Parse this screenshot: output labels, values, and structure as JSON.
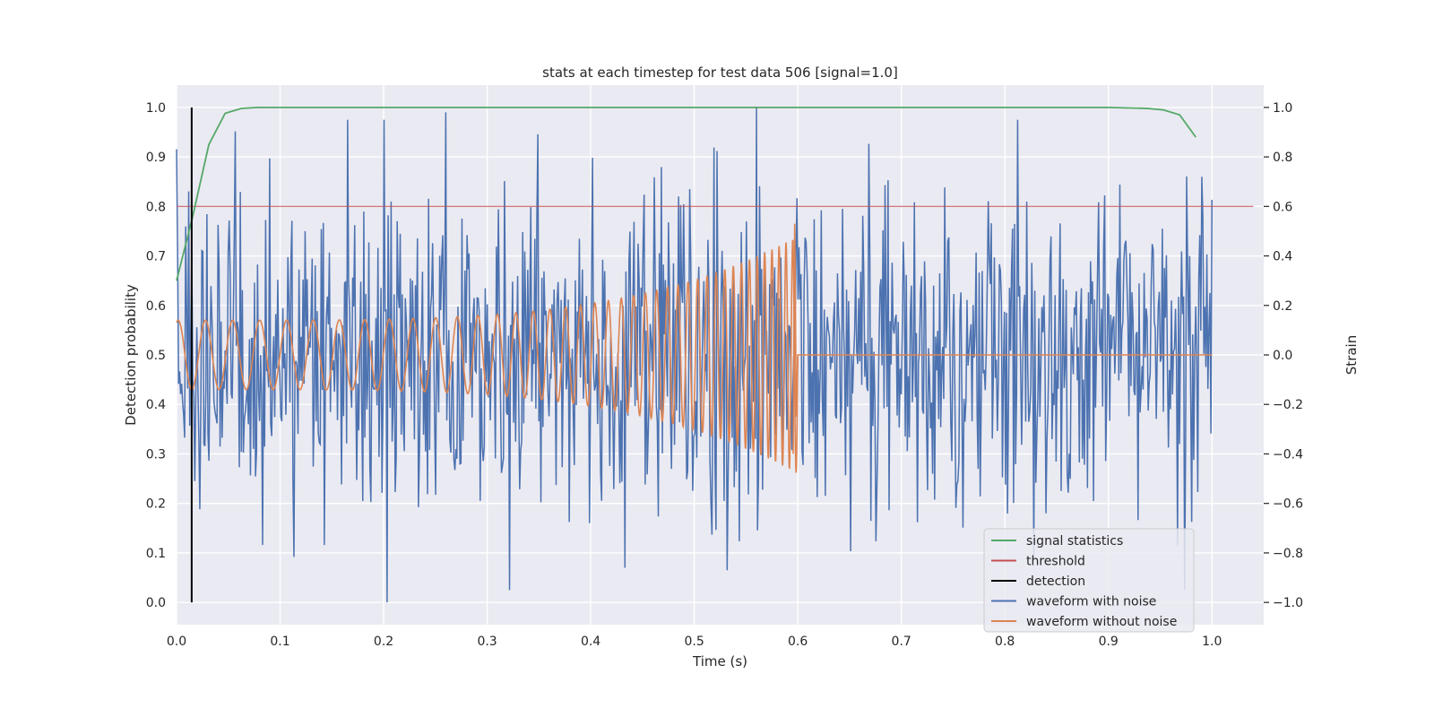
{
  "chart_data": {
    "type": "line",
    "title": "stats at each timestep for test data 506 [signal=1.0]",
    "xlabel": "Time (s)",
    "ylabel": "Detection probability",
    "y2label": "Strain",
    "xlim": [
      0.0,
      1.05
    ],
    "ylim": [
      -0.045,
      1.045
    ],
    "y2lim": [
      -1.09,
      1.09
    ],
    "xticks": [
      "0.0",
      "0.1",
      "0.2",
      "0.3",
      "0.4",
      "0.5",
      "0.6",
      "0.7",
      "0.8",
      "0.9",
      "1.0"
    ],
    "yticks": [
      "0.0",
      "0.1",
      "0.2",
      "0.3",
      "0.4",
      "0.5",
      "0.6",
      "0.7",
      "0.8",
      "0.9",
      "1.0"
    ],
    "y2ticks": [
      "−1.0",
      "−0.8",
      "−0.6",
      "−0.4",
      "−0.2",
      "0.0",
      "0.2",
      "0.4",
      "0.6",
      "0.8",
      "1.0"
    ],
    "grid": true,
    "legend_position": "lower-right",
    "colors": {
      "signal_statistics": "#55a868",
      "threshold": "#c44e52",
      "detection": "#000000",
      "waveform_noise": "#4c72b0",
      "waveform_clean": "#dd8452",
      "plot_bg": "#eaeaf2",
      "grid": "#ffffff"
    },
    "series": [
      {
        "name": "signal statistics",
        "axis": "left",
        "x": [
          0.0,
          0.0156,
          0.0312,
          0.0469,
          0.0625,
          0.0781,
          0.1,
          0.2,
          0.3,
          0.4,
          0.5,
          0.6,
          0.7,
          0.8,
          0.9,
          0.9375,
          0.9531,
          0.9688,
          0.9844
        ],
        "y": [
          0.65,
          0.78,
          0.925,
          0.988,
          0.998,
          1.0,
          1.0,
          1.0,
          1.0,
          1.0,
          1.0,
          1.0,
          1.0,
          1.0,
          1.0,
          0.998,
          0.995,
          0.985,
          0.94
        ]
      },
      {
        "name": "threshold",
        "axis": "left",
        "x": [
          0.0,
          1.04
        ],
        "y": [
          0.8,
          0.8
        ]
      },
      {
        "name": "detection",
        "axis": "left",
        "x": [
          0.0146,
          0.0146
        ],
        "y": [
          0.0,
          1.0
        ]
      },
      {
        "name": "waveform with noise",
        "axis": "right",
        "description_of_values": "random noise strain samples",
        "x_range": [
          0.0,
          1.0
        ],
        "samples": 1024,
        "amplitude": 1.0,
        "peaks": [
          {
            "x": 0.26,
            "y": 0.98
          },
          {
            "x": 0.56,
            "y": 1.0
          },
          {
            "x": 0.203,
            "y": -1.0
          },
          {
            "x": 0.532,
            "y": -0.87
          },
          {
            "x": 0.433,
            "y": -0.86
          }
        ]
      },
      {
        "name": "waveform without noise",
        "axis": "right",
        "x_range": [
          0.0,
          1.0
        ],
        "chirp_end": 0.6,
        "amplitude_start": 0.14,
        "amplitude_end": 0.48,
        "peak_at_end": {
          "x": 0.597,
          "y": 0.53
        }
      }
    ],
    "legend": [
      {
        "label": "signal statistics",
        "key": "signal_statistics"
      },
      {
        "label": "threshold",
        "key": "threshold"
      },
      {
        "label": "detection",
        "key": "detection"
      },
      {
        "label": "waveform with noise",
        "key": "waveform_noise"
      },
      {
        "label": "waveform without noise",
        "key": "waveform_clean"
      }
    ]
  }
}
